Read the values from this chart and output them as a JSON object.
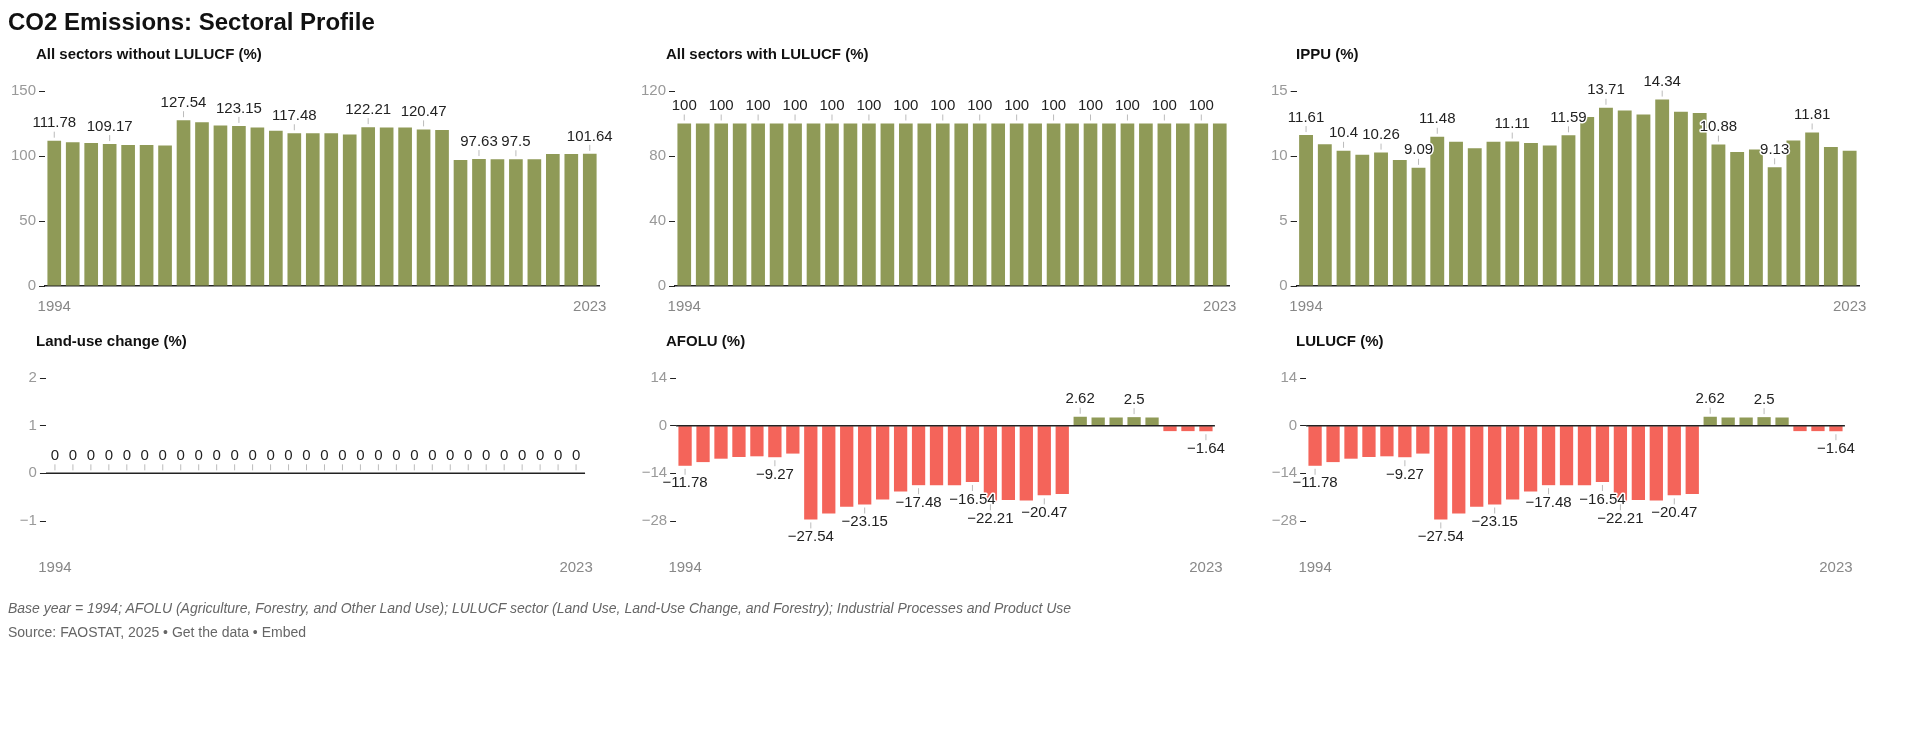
{
  "chart_data": [
    {
      "type": "other",
      "title": "CO2 Emissions: Sectoral Profile",
      "annotations": [
        "Base year = 1994; AFOLU (Agriculture, Forestry, and Other Land Use); LULUCF sector (Land Use, Land-Use Change, and Forestry); Industrial Processes and Product Use",
        "Source: FAOSTAT, 2025 • Get the data • Embed"
      ]
    },
    {
      "type": "bar",
      "title": "All sectors without LULUCF (%)",
      "categories": [
        "1994",
        null,
        null,
        null,
        null,
        null,
        null,
        null,
        null,
        null,
        null,
        null,
        null,
        null,
        null,
        null,
        null,
        null,
        null,
        null,
        null,
        null,
        null,
        null,
        null,
        null,
        null,
        null,
        null,
        "2023"
      ],
      "values": [
        111.78,
        110.5,
        110,
        109.17,
        108.5,
        108.5,
        108,
        127.54,
        126,
        123.5,
        123.15,
        122,
        119.5,
        117.48,
        117.5,
        117.5,
        116.5,
        122.21,
        122,
        122,
        120.47,
        120,
        97,
        97.63,
        97.5,
        97.5,
        97.5,
        101.5,
        101.5,
        101.64
      ],
      "value_labels": [
        "111.78",
        null,
        null,
        "109.17",
        null,
        null,
        null,
        "127.54",
        null,
        null,
        "123.15",
        null,
        null,
        "117.48",
        null,
        null,
        null,
        "122.21",
        null,
        null,
        "120.47",
        null,
        null,
        "97.63",
        null,
        "97.5",
        null,
        null,
        null,
        "101.64"
      ],
      "color": "#8f9a57",
      "ylim": [
        0,
        150
      ],
      "yticks": [
        0,
        50,
        100,
        150
      ],
      "grid": false
    },
    {
      "type": "bar",
      "title": "All sectors with LULUCF (%)",
      "categories": [
        "1994",
        null,
        null,
        null,
        null,
        null,
        null,
        null,
        null,
        null,
        null,
        null,
        null,
        null,
        null,
        null,
        null,
        null,
        null,
        null,
        null,
        null,
        null,
        null,
        null,
        null,
        null,
        null,
        null,
        "2023"
      ],
      "values": [
        100,
        100,
        100,
        100,
        100,
        100,
        100,
        100,
        100,
        100,
        100,
        100,
        100,
        100,
        100,
        100,
        100,
        100,
        100,
        100,
        100,
        100,
        100,
        100,
        100,
        100,
        100,
        100,
        100,
        100
      ],
      "value_labels": [
        "100",
        null,
        "100",
        null,
        "100",
        null,
        "100",
        null,
        "100",
        null,
        "100",
        null,
        "100",
        null,
        "100",
        null,
        "100",
        null,
        "100",
        null,
        "100",
        null,
        "100",
        null,
        "100",
        null,
        "100",
        null,
        "100",
        null
      ],
      "color": "#8f9a57",
      "ylim": [
        0,
        120
      ],
      "yticks": [
        0,
        40,
        80,
        120
      ],
      "grid": false
    },
    {
      "type": "bar",
      "title": "IPPU (%)",
      "categories": [
        "1994",
        null,
        null,
        null,
        null,
        null,
        null,
        null,
        null,
        null,
        null,
        null,
        null,
        null,
        null,
        null,
        null,
        null,
        null,
        null,
        null,
        null,
        null,
        null,
        null,
        null,
        null,
        null,
        null,
        "2023"
      ],
      "values": [
        11.61,
        10.9,
        10.4,
        10.1,
        10.26,
        9.7,
        9.09,
        11.48,
        11.1,
        10.6,
        11.1,
        11.11,
        11,
        10.8,
        11.59,
        13,
        13.71,
        13.5,
        13.2,
        14.34,
        13.4,
        13.3,
        10.88,
        10.3,
        10.5,
        9.13,
        11.2,
        11.81,
        10.7,
        10.4
      ],
      "value_labels": [
        "11.61",
        null,
        "10.4",
        null,
        "10.26",
        null,
        "9.09",
        "11.48",
        null,
        null,
        null,
        "11.11",
        null,
        null,
        "11.59",
        null,
        "13.71",
        null,
        null,
        "14.34",
        null,
        null,
        "10.88",
        null,
        null,
        "9.13",
        null,
        "11.81",
        null,
        null
      ],
      "color": "#8f9a57",
      "ylim": [
        0,
        15
      ],
      "yticks": [
        0,
        5,
        10,
        15
      ],
      "grid": false
    },
    {
      "type": "bar",
      "title": "Land-use change (%)",
      "categories": [
        "1994",
        null,
        null,
        null,
        null,
        null,
        null,
        null,
        null,
        null,
        null,
        null,
        null,
        null,
        null,
        null,
        null,
        null,
        null,
        null,
        null,
        null,
        null,
        null,
        null,
        null,
        null,
        null,
        null,
        "2023"
      ],
      "values": [
        0,
        0,
        0,
        0,
        0,
        0,
        0,
        0,
        0,
        0,
        0,
        0,
        0,
        0,
        0,
        0,
        0,
        0,
        0,
        0,
        0,
        0,
        0,
        0,
        0,
        0,
        0,
        0,
        0,
        0
      ],
      "data_labels": true,
      "color": "#8f9a57",
      "ylim": [
        -1,
        2
      ],
      "yticks": [
        {
          "value": -1,
          "label": "−1"
        },
        0,
        1,
        2
      ],
      "grid": false,
      "ref_lines": [
        {
          "axis": "y",
          "value": 0,
          "color": "#222222"
        }
      ]
    },
    {
      "type": "bar",
      "title": "AFOLU (%)",
      "categories": [
        "1994",
        null,
        null,
        null,
        null,
        null,
        null,
        null,
        null,
        null,
        null,
        null,
        null,
        null,
        null,
        null,
        null,
        null,
        null,
        null,
        null,
        null,
        null,
        null,
        null,
        null,
        null,
        null,
        null,
        "2023"
      ],
      "values": [
        -11.78,
        -10.7,
        -9.7,
        -9.2,
        -9,
        -9.27,
        -8.2,
        -27.54,
        -25.8,
        -23.8,
        -23.15,
        -21.7,
        -19.3,
        -17.48,
        -17.5,
        -17.5,
        -16.54,
        -22.21,
        -21.8,
        -22,
        -20.47,
        -20.1,
        2.62,
        2.4,
        2.4,
        2.5,
        2.4,
        -1.6,
        -1.6,
        -1.64
      ],
      "value_labels": [
        "−11.78",
        null,
        null,
        null,
        null,
        "−9.27",
        null,
        "−27.54",
        null,
        null,
        "−23.15",
        null,
        null,
        "−17.48",
        null,
        null,
        "−16.54",
        "−22.21",
        null,
        null,
        "−20.47",
        null,
        "2.62",
        null,
        null,
        "2.5",
        null,
        null,
        null,
        "−1.64"
      ],
      "colors": [
        "#f4645a",
        "#f4645a",
        "#f4645a",
        "#f4645a",
        "#f4645a",
        "#f4645a",
        "#f4645a",
        "#f4645a",
        "#f4645a",
        "#f4645a",
        "#f4645a",
        "#f4645a",
        "#f4645a",
        "#f4645a",
        "#f4645a",
        "#f4645a",
        "#f4645a",
        "#f4645a",
        "#f4645a",
        "#f4645a",
        "#f4645a",
        "#f4645a",
        "#8f9a57",
        "#8f9a57",
        "#8f9a57",
        "#8f9a57",
        "#8f9a57",
        "#f4645a",
        "#f4645a",
        "#f4645a"
      ],
      "ylim": [
        -28,
        14
      ],
      "yticks": [
        {
          "value": -28,
          "label": "−28"
        },
        {
          "value": -14,
          "label": "−14"
        },
        0,
        14
      ],
      "grid": false,
      "ref_lines": [
        {
          "axis": "y",
          "value": 0,
          "color": "#222222"
        }
      ]
    },
    {
      "type": "bar",
      "title": "LULUCF (%)",
      "categories": [
        "1994",
        null,
        null,
        null,
        null,
        null,
        null,
        null,
        null,
        null,
        null,
        null,
        null,
        null,
        null,
        null,
        null,
        null,
        null,
        null,
        null,
        null,
        null,
        null,
        null,
        null,
        null,
        null,
        null,
        "2023"
      ],
      "values": [
        -11.78,
        -10.7,
        -9.7,
        -9.2,
        -9,
        -9.27,
        -8.2,
        -27.54,
        -25.8,
        -23.8,
        -23.15,
        -21.7,
        -19.3,
        -17.48,
        -17.5,
        -17.5,
        -16.54,
        -22.21,
        -21.8,
        -22,
        -20.47,
        -20.1,
        2.62,
        2.4,
        2.4,
        2.5,
        2.4,
        -1.6,
        -1.6,
        -1.64
      ],
      "value_labels": [
        "−11.78",
        null,
        null,
        null,
        null,
        "−9.27",
        null,
        "−27.54",
        null,
        null,
        "−23.15",
        null,
        null,
        "−17.48",
        null,
        null,
        "−16.54",
        "−22.21",
        null,
        null,
        "−20.47",
        null,
        "2.62",
        null,
        null,
        "2.5",
        null,
        null,
        null,
        "−1.64"
      ],
      "colors": [
        "#f4645a",
        "#f4645a",
        "#f4645a",
        "#f4645a",
        "#f4645a",
        "#f4645a",
        "#f4645a",
        "#f4645a",
        "#f4645a",
        "#f4645a",
        "#f4645a",
        "#f4645a",
        "#f4645a",
        "#f4645a",
        "#f4645a",
        "#f4645a",
        "#f4645a",
        "#f4645a",
        "#f4645a",
        "#f4645a",
        "#f4645a",
        "#f4645a",
        "#8f9a57",
        "#8f9a57",
        "#8f9a57",
        "#8f9a57",
        "#8f9a57",
        "#f4645a",
        "#f4645a",
        "#f4645a"
      ],
      "ylim": [
        -28,
        14
      ],
      "yticks": [
        {
          "value": -28,
          "label": "−28"
        },
        {
          "value": -14,
          "label": "−14"
        },
        0,
        14
      ],
      "grid": false,
      "ref_lines": [
        {
          "axis": "y",
          "value": 0,
          "color": "#222222"
        }
      ]
    }
  ]
}
